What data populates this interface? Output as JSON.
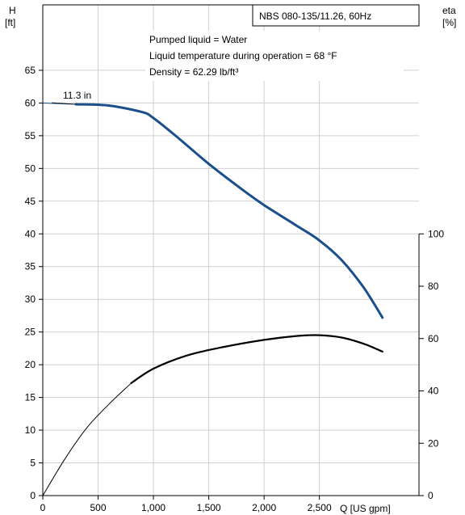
{
  "chart_data": {
    "type": "line",
    "title": "NBS 080-135/11.26, 60Hz",
    "annotations": [
      "Pumped liquid = Water",
      "Liquid temperature during operation = 68 °F",
      "Density = 62.29 lb/ft³"
    ],
    "curve_label": "11.3 in",
    "x_axis": {
      "label": "Q [US gpm]",
      "range": [
        0,
        3400
      ],
      "ticks": [
        0,
        500,
        1000,
        1500,
        2000,
        2500
      ],
      "tick_labels": [
        "0",
        "500",
        "1,000",
        "1,500",
        "2,000",
        "2,500"
      ]
    },
    "y_axis_left": {
      "label_line1": "H",
      "label_line2": "[ft]",
      "range": [
        0,
        75
      ],
      "ticks": [
        0,
        5,
        10,
        15,
        20,
        25,
        30,
        35,
        40,
        45,
        50,
        55,
        60,
        65
      ],
      "tick_labels": [
        "0",
        "5",
        "10",
        "15",
        "20",
        "25",
        "30",
        "35",
        "40",
        "45",
        "50",
        "55",
        "60",
        "65"
      ]
    },
    "y_axis_right": {
      "label_line1": "eta",
      "label_line2": "[%]",
      "range": [
        0,
        187.5
      ],
      "ticks": [
        0,
        20,
        40,
        60,
        80,
        100
      ],
      "tick_labels": [
        "0",
        "20",
        "40",
        "60",
        "80",
        "100"
      ]
    },
    "grid": true,
    "series": [
      {
        "axis": "left",
        "color": "#1a4f8c",
        "x": [
          0,
          300,
          600,
          900,
          1000,
          1200,
          1500,
          1800,
          2000,
          2300,
          2500,
          2700,
          2900,
          3070
        ],
        "y": [
          60,
          59.8,
          59.6,
          58.6,
          57.7,
          55,
          50.7,
          46.8,
          44.4,
          41.2,
          39,
          36,
          31.8,
          27.2
        ]
      },
      {
        "axis": "right",
        "color": "#000000",
        "x": [
          0,
          200,
          400,
          600,
          800,
          1000,
          1300,
          1600,
          2000,
          2300,
          2500,
          2700,
          2900,
          3070
        ],
        "y": [
          0,
          14,
          26,
          35,
          43,
          48.5,
          53.5,
          56.5,
          59.5,
          61,
          61.3,
          60.4,
          58,
          55
        ]
      }
    ]
  }
}
